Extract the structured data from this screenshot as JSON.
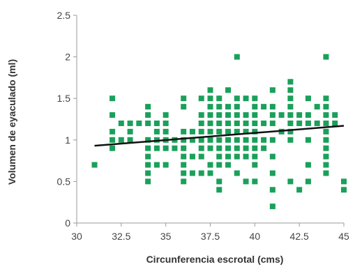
{
  "chart_data": {
    "type": "scatter",
    "title": "",
    "xlabel": "Circunferencia escrotal (cms)",
    "ylabel": "Volumen de eyaculado (ml)",
    "xlim": [
      30,
      45
    ],
    "ylim": [
      0,
      2.5
    ],
    "x_ticks": [
      {
        "value": 30,
        "label": "30"
      },
      {
        "value": 32.5,
        "label": "32.5"
      },
      {
        "value": 35,
        "label": "35"
      },
      {
        "value": 37.5,
        "label": "37.5"
      },
      {
        "value": 40,
        "label": "40"
      },
      {
        "value": 42.5,
        "label": "42.5"
      },
      {
        "value": 45,
        "label": "45"
      }
    ],
    "y_ticks": [
      {
        "value": 0,
        "label": "0"
      },
      {
        "value": 0.5,
        "label": "0.5"
      },
      {
        "value": 1,
        "label": "1"
      },
      {
        "value": 1.5,
        "label": "1.5"
      },
      {
        "value": 2,
        "label": "2"
      },
      {
        "value": 2.5,
        "label": "2.5"
      }
    ],
    "grid": false,
    "marker_color": "#1aa05a",
    "trend_color": "#111111",
    "trendline": {
      "x": [
        31,
        45
      ],
      "y": [
        0.93,
        1.17
      ]
    },
    "points": [
      [
        31,
        0.7
      ],
      [
        32,
        1.5
      ],
      [
        32,
        1.3
      ],
      [
        32,
        1.1
      ],
      [
        32,
        1.0
      ],
      [
        32,
        0.9
      ],
      [
        32.5,
        1.2
      ],
      [
        32.5,
        1.0
      ],
      [
        33,
        1.2
      ],
      [
        33,
        1.1
      ],
      [
        33,
        1.0
      ],
      [
        33.5,
        1.2
      ],
      [
        34,
        1.4
      ],
      [
        34,
        1.3
      ],
      [
        34,
        1.2
      ],
      [
        34,
        1.0
      ],
      [
        34,
        0.9
      ],
      [
        34,
        0.8
      ],
      [
        34,
        0.7
      ],
      [
        34,
        0.6
      ],
      [
        34,
        0.5
      ],
      [
        34.5,
        1.2
      ],
      [
        34.5,
        1.1
      ],
      [
        34.5,
        1.0
      ],
      [
        34.5,
        0.9
      ],
      [
        34.5,
        0.7
      ],
      [
        35,
        1.3
      ],
      [
        35,
        1.2
      ],
      [
        35,
        1.1
      ],
      [
        35,
        1.0
      ],
      [
        35,
        0.9
      ],
      [
        35,
        0.7
      ],
      [
        35.5,
        1.0
      ],
      [
        35.5,
        0.9
      ],
      [
        36,
        1.5
      ],
      [
        36,
        1.4
      ],
      [
        36,
        1.1
      ],
      [
        36,
        1.0
      ],
      [
        36,
        0.9
      ],
      [
        36,
        0.8
      ],
      [
        36,
        0.7
      ],
      [
        36,
        0.6
      ],
      [
        36,
        0.5
      ],
      [
        36.5,
        1.1
      ],
      [
        36.5,
        1.0
      ],
      [
        36.5,
        0.8
      ],
      [
        36.5,
        0.6
      ],
      [
        37,
        1.5
      ],
      [
        37,
        1.3
      ],
      [
        37,
        1.2
      ],
      [
        37,
        1.1
      ],
      [
        37,
        1.0
      ],
      [
        37,
        0.9
      ],
      [
        37,
        0.8
      ],
      [
        37,
        0.6
      ],
      [
        37.5,
        1.6
      ],
      [
        37.5,
        1.5
      ],
      [
        37.5,
        1.4
      ],
      [
        37.5,
        1.3
      ],
      [
        37.5,
        1.2
      ],
      [
        37.5,
        1.1
      ],
      [
        37.5,
        1.0
      ],
      [
        37.5,
        0.9
      ],
      [
        37.5,
        0.7
      ],
      [
        37.5,
        0.6
      ],
      [
        38,
        1.5
      ],
      [
        38,
        1.4
      ],
      [
        38,
        1.3
      ],
      [
        38,
        1.2
      ],
      [
        38,
        1.1
      ],
      [
        38,
        1.0
      ],
      [
        38,
        0.9
      ],
      [
        38,
        0.8
      ],
      [
        38,
        0.7
      ],
      [
        38,
        0.5
      ],
      [
        38,
        0.4
      ],
      [
        38.5,
        1.6
      ],
      [
        38.5,
        1.4
      ],
      [
        38.5,
        1.3
      ],
      [
        38.5,
        1.2
      ],
      [
        38.5,
        1.1
      ],
      [
        38.5,
        1.0
      ],
      [
        38.5,
        0.9
      ],
      [
        38.5,
        0.8
      ],
      [
        38.5,
        0.7
      ],
      [
        39,
        2.0
      ],
      [
        39,
        1.5
      ],
      [
        39,
        1.4
      ],
      [
        39,
        1.3
      ],
      [
        39,
        1.2
      ],
      [
        39,
        1.1
      ],
      [
        39,
        1.0
      ],
      [
        39,
        0.9
      ],
      [
        39,
        0.8
      ],
      [
        39,
        0.6
      ],
      [
        39.5,
        1.5
      ],
      [
        39.5,
        1.3
      ],
      [
        39.5,
        1.2
      ],
      [
        39.5,
        1.1
      ],
      [
        39.5,
        1.0
      ],
      [
        39.5,
        0.9
      ],
      [
        39.5,
        0.8
      ],
      [
        39.5,
        0.5
      ],
      [
        40,
        1.5
      ],
      [
        40,
        1.4
      ],
      [
        40,
        1.3
      ],
      [
        40,
        1.2
      ],
      [
        40,
        1.1
      ],
      [
        40,
        1.0
      ],
      [
        40,
        0.9
      ],
      [
        40,
        0.8
      ],
      [
        40,
        0.7
      ],
      [
        40,
        0.5
      ],
      [
        40.5,
        1.4
      ],
      [
        40.5,
        1.2
      ],
      [
        40.5,
        1.0
      ],
      [
        40.5,
        0.9
      ],
      [
        41,
        1.6
      ],
      [
        41,
        1.4
      ],
      [
        41,
        1.3
      ],
      [
        41,
        1.2
      ],
      [
        41,
        1.0
      ],
      [
        41,
        0.8
      ],
      [
        41,
        0.6
      ],
      [
        41,
        0.4
      ],
      [
        41,
        0.2
      ],
      [
        41.5,
        1.3
      ],
      [
        41.5,
        1.1
      ],
      [
        42,
        1.7
      ],
      [
        42,
        1.6
      ],
      [
        42,
        1.5
      ],
      [
        42,
        1.4
      ],
      [
        42,
        1.3
      ],
      [
        42,
        1.2
      ],
      [
        42,
        1.1
      ],
      [
        42,
        1.0
      ],
      [
        42,
        0.5
      ],
      [
        42.5,
        1.3
      ],
      [
        42.5,
        1.2
      ],
      [
        42.5,
        0.4
      ],
      [
        43,
        1.5
      ],
      [
        43,
        1.3
      ],
      [
        43,
        1.2
      ],
      [
        43,
        1.0
      ],
      [
        43,
        0.7
      ],
      [
        43,
        0.5
      ],
      [
        43.5,
        1.4
      ],
      [
        43.5,
        1.2
      ],
      [
        44,
        2.0
      ],
      [
        44,
        1.5
      ],
      [
        44,
        1.4
      ],
      [
        44,
        1.3
      ],
      [
        44,
        1.2
      ],
      [
        44,
        1.1
      ],
      [
        44,
        1.0
      ],
      [
        44,
        0.9
      ],
      [
        44,
        0.8
      ],
      [
        44,
        0.7
      ],
      [
        44,
        0.6
      ],
      [
        44.5,
        1.3
      ],
      [
        44.5,
        1.2
      ],
      [
        45,
        0.5
      ],
      [
        45,
        0.4
      ]
    ]
  }
}
